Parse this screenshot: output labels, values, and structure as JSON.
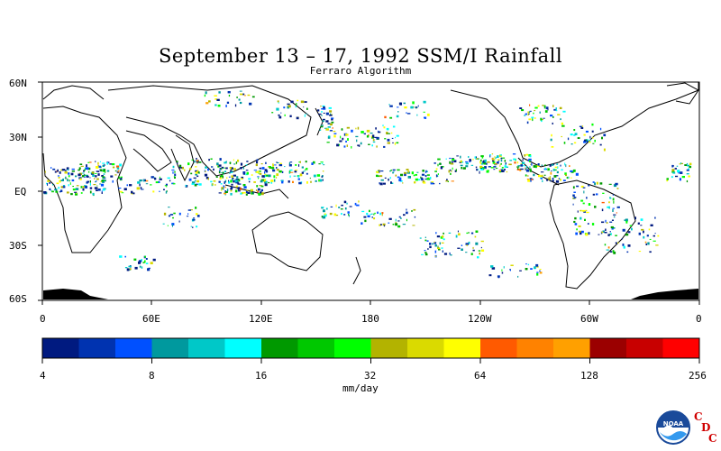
{
  "title": "September 13 – 17, 1992 SSM/I Rainfall",
  "subtitle": "Ferraro Algorithm",
  "map": {
    "lat_labels": [
      "60N",
      "30N",
      "EQ",
      "30S",
      "60S"
    ],
    "lon_labels": [
      "0",
      "60E",
      "120E",
      "180",
      "120W",
      "60W",
      "0"
    ]
  },
  "colorbar": {
    "colors": [
      "#001a80",
      "#0033b0",
      "#0050ff",
      "#00999e",
      "#00c8c8",
      "#00ffff",
      "#009900",
      "#00c800",
      "#00ff00",
      "#b3b300",
      "#dada00",
      "#ffff00",
      "#ff5a00",
      "#ff8200",
      "#ffa000",
      "#9b0000",
      "#c80000",
      "#ff0000"
    ],
    "tick_labels": [
      "4",
      "8",
      "16",
      "32",
      "64",
      "128",
      "256"
    ],
    "unit": "mm/day"
  },
  "logo": {
    "text": "NOAA",
    "cdc_letters": [
      "C",
      "D",
      "C"
    ]
  }
}
